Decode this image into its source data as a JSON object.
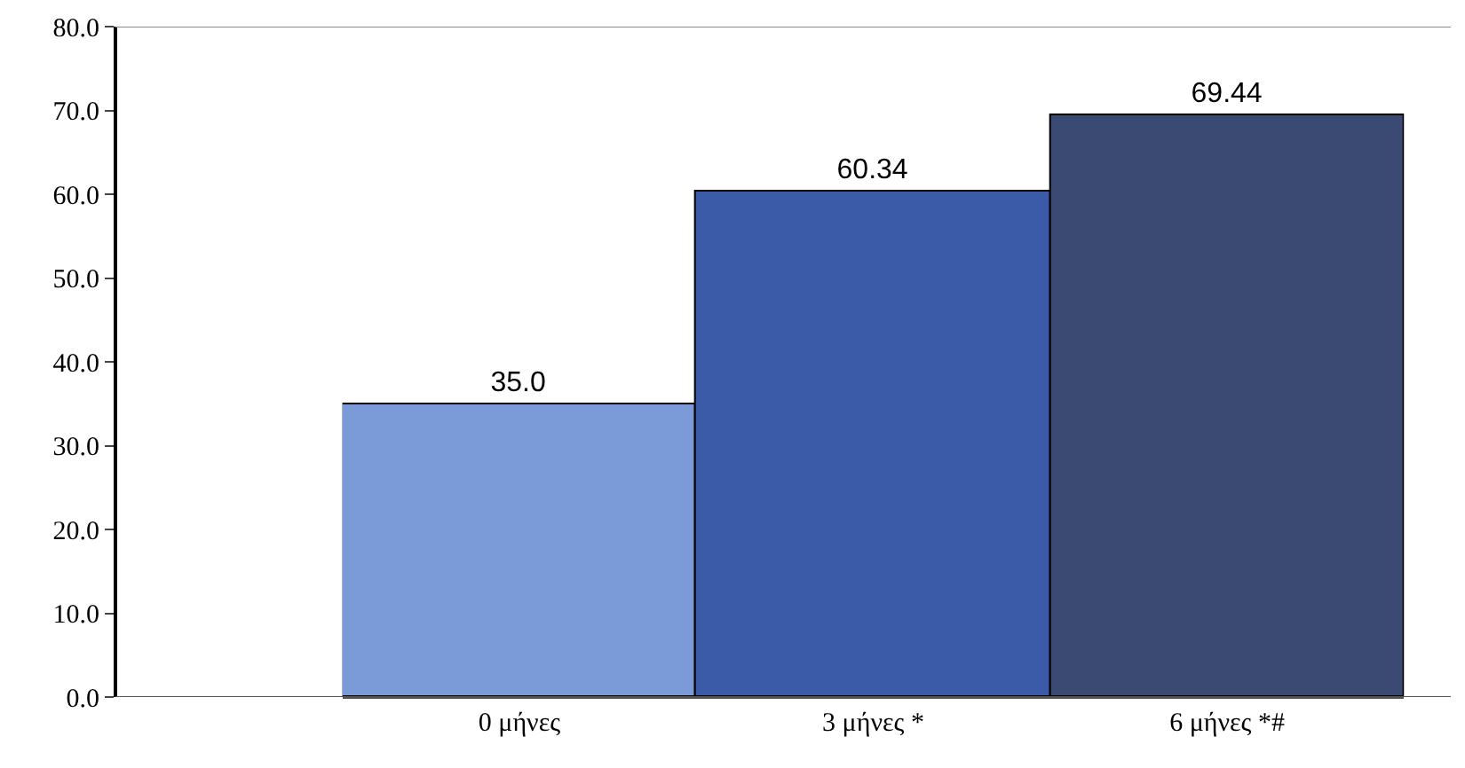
{
  "chart_data": {
    "type": "bar",
    "categories": [
      "0 μήνες",
      "3 μήνες *",
      "6 μήνες *#"
    ],
    "values": [
      35.0,
      60.34,
      69.44
    ],
    "value_labels": [
      "35.0",
      "60.34",
      "69.44"
    ],
    "colors": [
      "#7b9bd8",
      "#3b5ba9",
      "#3a4a72"
    ],
    "ylim": [
      0,
      80
    ],
    "yticks": [
      {
        "value": 0,
        "label": "0.0"
      },
      {
        "value": 10,
        "label": "10.0"
      },
      {
        "value": 20,
        "label": "20.0"
      },
      {
        "value": 30,
        "label": "30.0"
      },
      {
        "value": 40,
        "label": "40.0"
      },
      {
        "value": 50,
        "label": "50.0"
      },
      {
        "value": 60,
        "label": "60.0"
      },
      {
        "value": 70,
        "label": "70.0"
      },
      {
        "value": 80,
        "label": "80.0"
      }
    ],
    "legend": false
  }
}
